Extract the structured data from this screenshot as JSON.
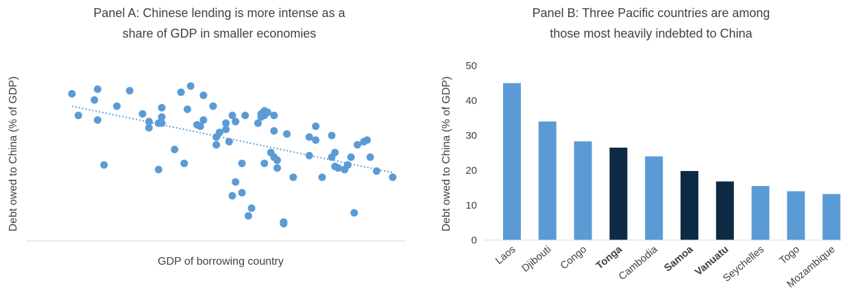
{
  "chart_data": [
    {
      "type": "scatter",
      "title": "Panel A: Chinese lending is more intense as a\nshare of GDP in smaller economies",
      "xlabel": "GDP of borrowing country",
      "ylabel": "Debt owed to China (% of GDP)",
      "trendline": {
        "style": "dotted",
        "x": [
          0.0,
          1.0
        ],
        "y": [
          0.8,
          0.37
        ]
      },
      "points": {
        "x": [
          0.0,
          0.02,
          0.07,
          0.08,
          0.08,
          0.1,
          0.14,
          0.18,
          0.22,
          0.24,
          0.24,
          0.27,
          0.27,
          0.28,
          0.28,
          0.28,
          0.32,
          0.34,
          0.35,
          0.36,
          0.37,
          0.39,
          0.4,
          0.41,
          0.41,
          0.44,
          0.45,
          0.45,
          0.46,
          0.48,
          0.48,
          0.49,
          0.5,
          0.5,
          0.51,
          0.51,
          0.53,
          0.53,
          0.54,
          0.55,
          0.56,
          0.58,
          0.59,
          0.59,
          0.6,
          0.6,
          0.6,
          0.61,
          0.62,
          0.63,
          0.63,
          0.63,
          0.64,
          0.64,
          0.66,
          0.66,
          0.67,
          0.69,
          0.74,
          0.74,
          0.76,
          0.76,
          0.78,
          0.81,
          0.81,
          0.82,
          0.82,
          0.83,
          0.85,
          0.85,
          0.86,
          0.87,
          0.88,
          0.89,
          0.91,
          0.92,
          0.93,
          0.95,
          1.0
        ],
        "y": [
          0.88,
          0.74,
          0.84,
          0.91,
          0.71,
          0.42,
          0.8,
          0.9,
          0.75,
          0.7,
          0.66,
          0.69,
          0.39,
          0.69,
          0.79,
          0.73,
          0.52,
          0.89,
          0.43,
          0.78,
          0.93,
          0.68,
          0.67,
          0.87,
          0.71,
          0.8,
          0.55,
          0.6,
          0.63,
          0.65,
          0.69,
          0.57,
          0.22,
          0.74,
          0.31,
          0.7,
          0.24,
          0.43,
          0.74,
          0.09,
          0.14,
          0.69,
          0.75,
          0.73,
          0.43,
          0.74,
          0.77,
          0.76,
          0.5,
          0.74,
          0.47,
          0.64,
          0.45,
          0.4,
          0.05,
          0.04,
          0.62,
          0.34,
          0.48,
          0.6,
          0.58,
          0.67,
          0.34,
          0.47,
          0.61,
          0.5,
          0.41,
          0.4,
          0.39,
          0.39,
          0.42,
          0.47,
          0.11,
          0.55,
          0.57,
          0.58,
          0.47,
          0.38,
          0.34
        ]
      },
      "color": "#5b9bd5"
    },
    {
      "type": "bar",
      "title": "Panel B: Three Pacific countries are among\nthose most heavily indebted to China",
      "ylabel": "Debt owed to China (% of GDP)",
      "categories": [
        "Laos",
        "Djibouti",
        "Congo",
        "Tonga",
        "Cambodia",
        "Samoa",
        "Vanuatu",
        "Seychelles",
        "Togo",
        "Mozambique"
      ],
      "values": [
        45.0,
        34.0,
        28.3,
        26.5,
        24.0,
        19.8,
        16.8,
        15.5,
        14.0,
        13.2
      ],
      "highlight": [
        false,
        false,
        false,
        true,
        false,
        true,
        true,
        false,
        false,
        false
      ],
      "ylim": [
        0,
        50
      ],
      "yticks": [
        "0",
        "10",
        "20",
        "30",
        "40",
        "50"
      ],
      "colors": {
        "normal": "#5b9bd5",
        "highlight": "#0c2a44"
      }
    }
  ]
}
